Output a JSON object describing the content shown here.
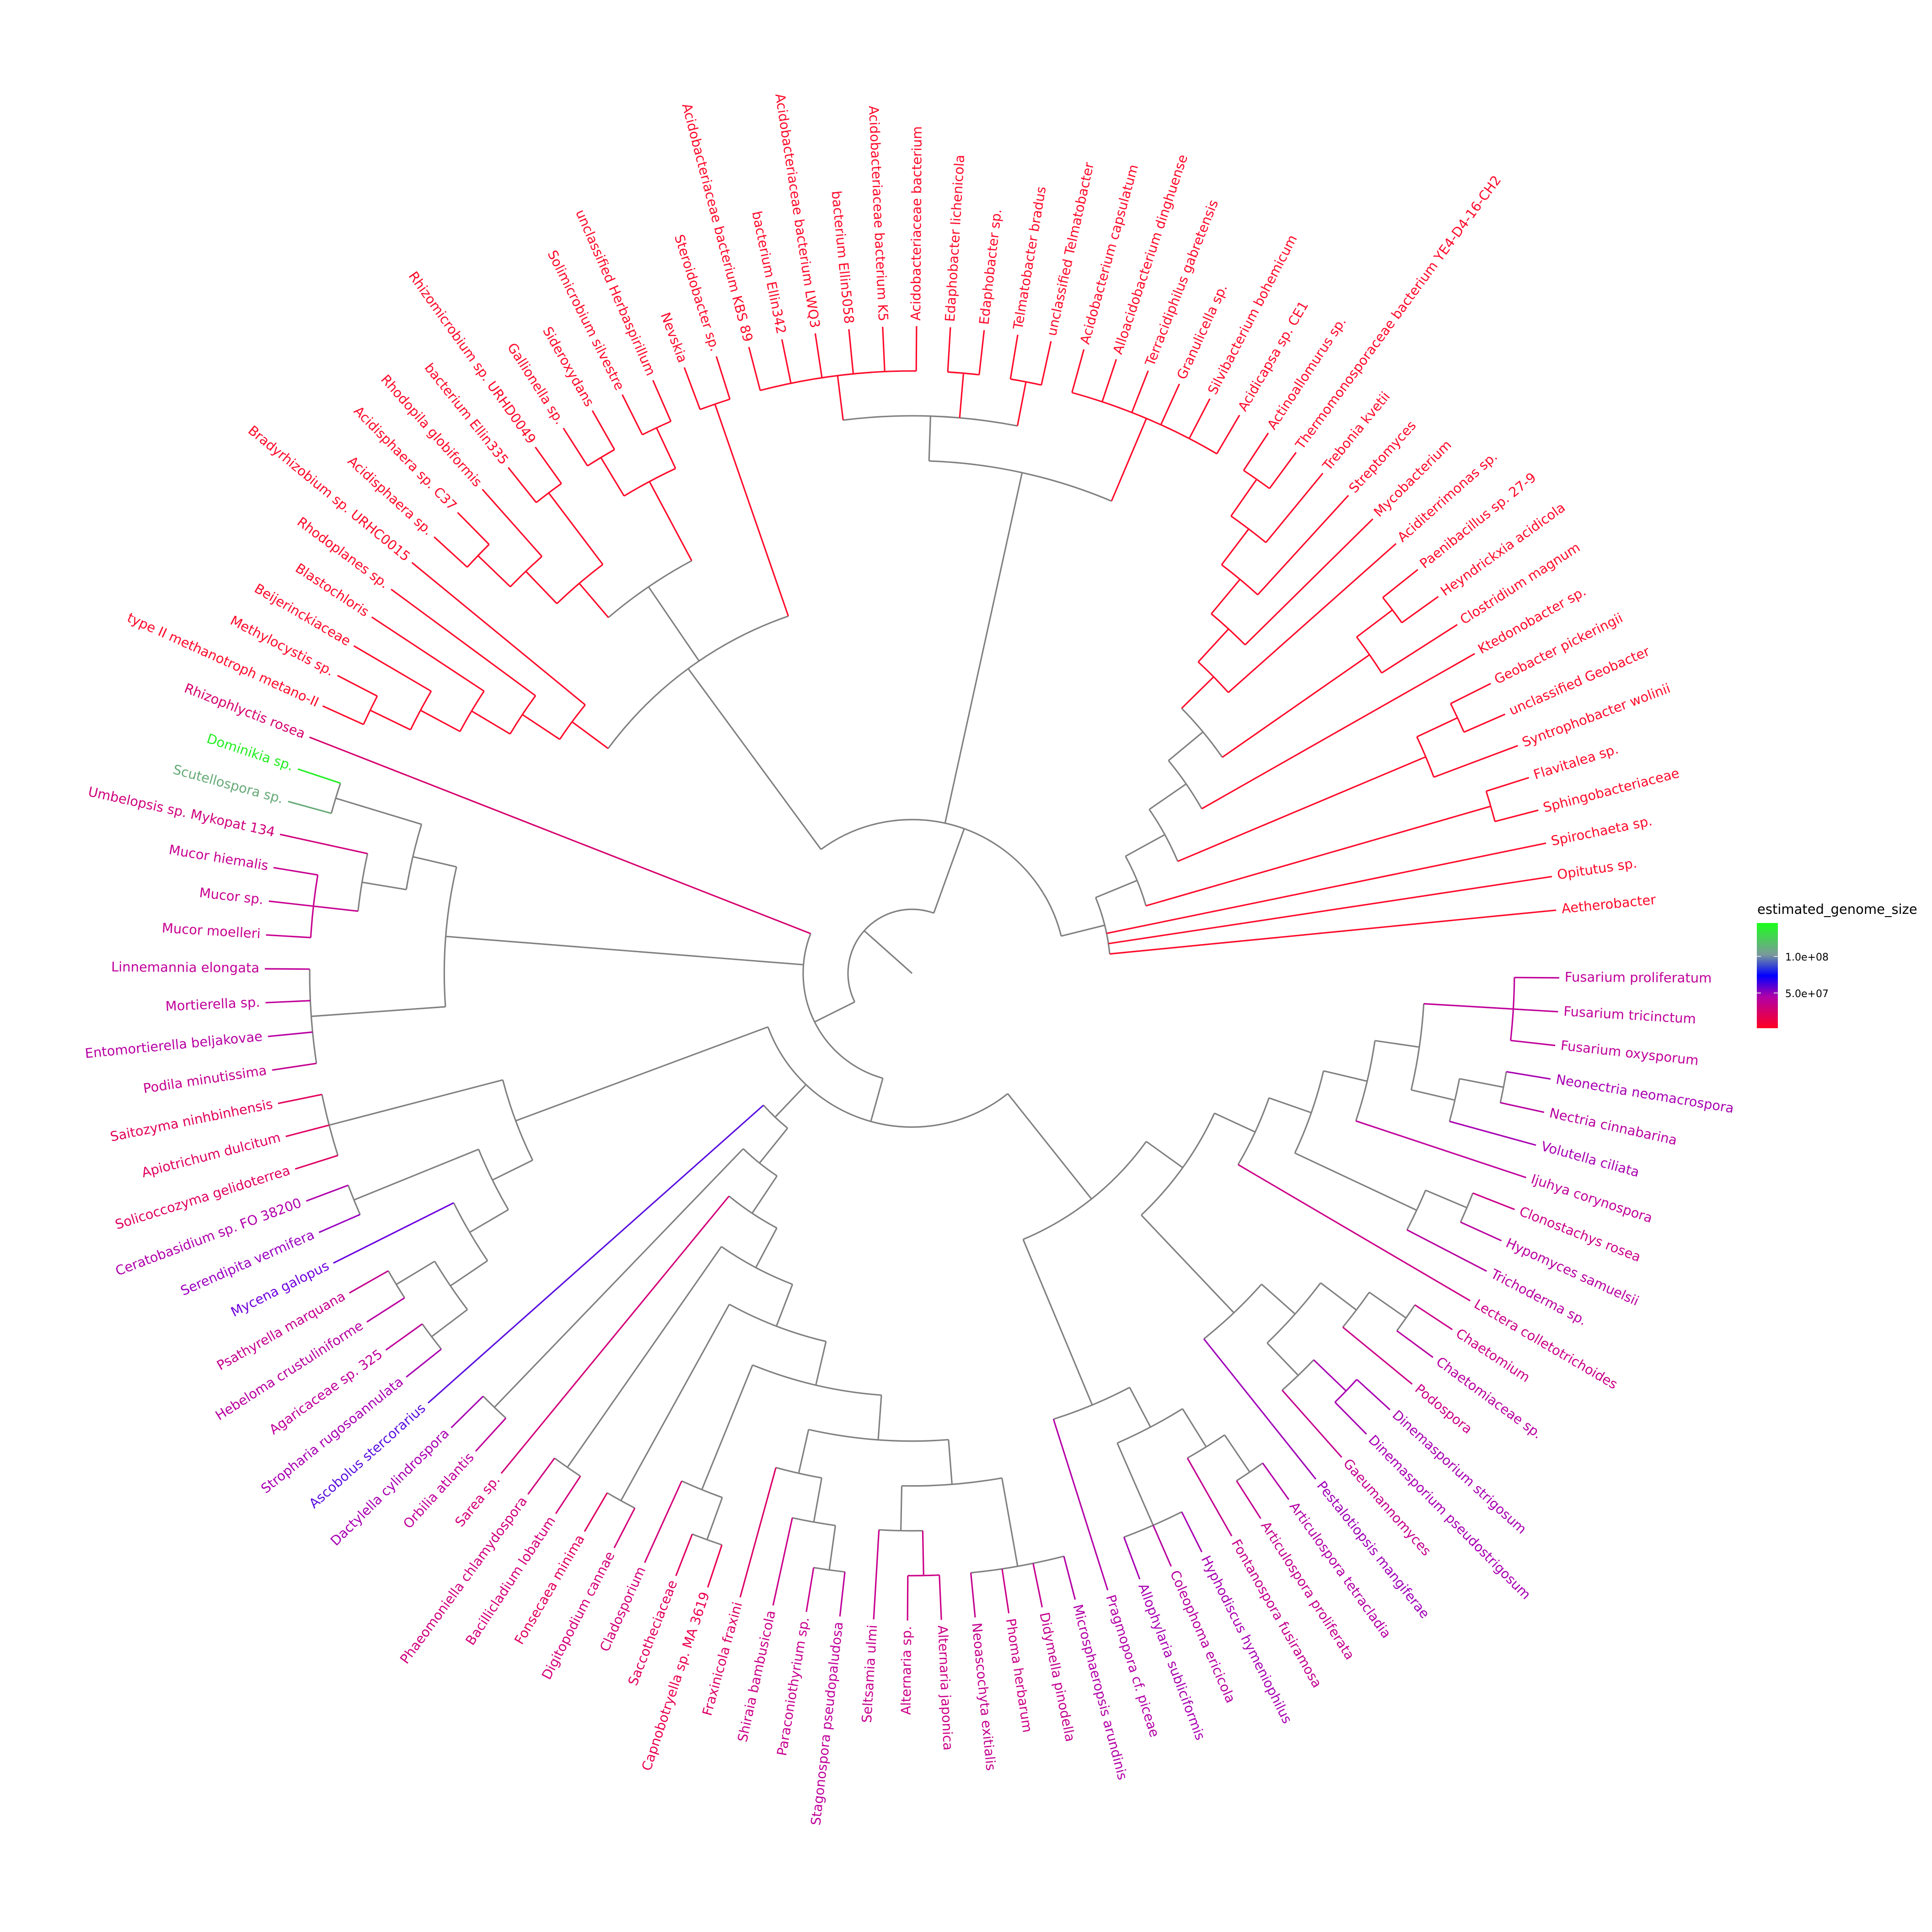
{
  "legend": {
    "title": "estimated_genome_size",
    "ticks": [
      {
        "label": "1.0e+08"
      },
      {
        "label": "5.0e+07"
      }
    ],
    "gradient_colors": [
      "#1aff1a",
      "#7a9a9a",
      "#0000ff",
      "#b000a8",
      "#ff0022"
    ]
  },
  "branch_gray": "#808080",
  "leaves": [
    {
      "name": "Aetherobacter",
      "color": "#ff0a2a"
    },
    {
      "name": "Opitutus sp.",
      "color": "#ff0a2a"
    },
    {
      "name": "Spirochaeta sp.",
      "color": "#ff0a2a"
    },
    {
      "name": "Sphingobacteriaceae",
      "color": "#ff0a2a"
    },
    {
      "name": "Flavitalea sp.",
      "color": "#ff0a2a"
    },
    {
      "name": "Syntrophobacter wolinii",
      "color": "#ff0a2a"
    },
    {
      "name": "unclassified Geobacter",
      "color": "#ff0a2a"
    },
    {
      "name": "Geobacter pickeringii",
      "color": "#ff0a2a"
    },
    {
      "name": "Ktedonobacter sp.",
      "color": "#ff0a2a"
    },
    {
      "name": "Clostridium magnum",
      "color": "#ff0a2a"
    },
    {
      "name": "Heyndrickxia acidicola",
      "color": "#ff0a2a"
    },
    {
      "name": "Paenibacillus sp. 27-9",
      "color": "#ff0a2a"
    },
    {
      "name": "Aciditerrimonas sp.",
      "color": "#ff0a2a"
    },
    {
      "name": "Mycobacterium",
      "color": "#ff0a2a"
    },
    {
      "name": "Streptomyces",
      "color": "#ff0a2a"
    },
    {
      "name": "Trebonia kvetii",
      "color": "#ff0a2a"
    },
    {
      "name": "Thermomonosporaceae bacterium YE4-D4-16-CH2",
      "color": "#ff0a2a"
    },
    {
      "name": "Actinoallomurus sp.",
      "color": "#ff0a2a"
    },
    {
      "name": "Acidicapsa sp. CE1",
      "color": "#ff0a2a"
    },
    {
      "name": "Silvibacterium bohemicum",
      "color": "#ff0a2a"
    },
    {
      "name": "Granulicella sp.",
      "color": "#ff0a2a"
    },
    {
      "name": "Terracidiphilus gabretensis",
      "color": "#ff0a2a"
    },
    {
      "name": "Alloacidobacterium dinghuense",
      "color": "#ff0a2a"
    },
    {
      "name": "Acidobacterium capsulatum",
      "color": "#ff0a2a"
    },
    {
      "name": "unclassified Telmatobacter",
      "color": "#ff0a2a"
    },
    {
      "name": "Telmatobacter bradus",
      "color": "#ff0a2a"
    },
    {
      "name": "Edaphobacter sp.",
      "color": "#ff0a2a"
    },
    {
      "name": "Edaphobacter lichenicola",
      "color": "#ff0a2a"
    },
    {
      "name": "Acidobacteriaceae bacterium",
      "color": "#ff0a2a"
    },
    {
      "name": "Acidobacteriaceae bacterium K5",
      "color": "#ff0a2a"
    },
    {
      "name": "bacterium Ellin5058",
      "color": "#ff0a2a"
    },
    {
      "name": "Acidobacteriaceae bacterium LWQ3",
      "color": "#ff0a2a"
    },
    {
      "name": "bacterium Ellin342",
      "color": "#ff0a2a"
    },
    {
      "name": "Acidobacteriaceae bacterium KBS 89",
      "color": "#ff0a2a"
    },
    {
      "name": "Steroidobacter sp.",
      "color": "#ff0a2a"
    },
    {
      "name": "Nevskia",
      "color": "#ff0a2a"
    },
    {
      "name": "unclassified Herbaspirillum",
      "color": "#ff0a2a"
    },
    {
      "name": "Solimicrobium silvestre",
      "color": "#ff0a2a"
    },
    {
      "name": "Sideroxydans",
      "color": "#ff0a2a"
    },
    {
      "name": "Gallionella sp.",
      "color": "#ff0a2a"
    },
    {
      "name": "Rhizomicrobium sp. URHD0049",
      "color": "#ff0a2a"
    },
    {
      "name": "bacterium Ellin335",
      "color": "#ff0a2a"
    },
    {
      "name": "Rhodopila globiformis",
      "color": "#ff0a2a"
    },
    {
      "name": "Acidisphaera sp. C37",
      "color": "#ff0a2a"
    },
    {
      "name": "Acidisphaera sp.",
      "color": "#ff0a2a"
    },
    {
      "name": "Bradyrhizobium sp. URHC0015",
      "color": "#ff0a2a"
    },
    {
      "name": "Rhodoplanes sp.",
      "color": "#ff0a2a"
    },
    {
      "name": "Blastochloris",
      "color": "#ff0a2a"
    },
    {
      "name": "Beijerinckiaceae",
      "color": "#ff0a2a"
    },
    {
      "name": "Methylocystis sp.",
      "color": "#ff0a2a"
    },
    {
      "name": "type II methanotroph metano-II",
      "color": "#ff0a2a"
    },
    {
      "name": "Rhizophlyctis rosea",
      "color": "#d6006e"
    },
    {
      "name": "Dominikia sp.",
      "color": "#22ee22"
    },
    {
      "name": "Scutellospora sp.",
      "color": "#66aa77"
    },
    {
      "name": "Umbelopsis sp. Mykopat 134",
      "color": "#d0007c"
    },
    {
      "name": "Mucor hiemalis",
      "color": "#c80090"
    },
    {
      "name": "Mucor sp.",
      "color": "#c80090"
    },
    {
      "name": "Mucor moelleri",
      "color": "#c80090"
    },
    {
      "name": "Linnemannia elongata",
      "color": "#c0009a"
    },
    {
      "name": "Mortierella sp.",
      "color": "#c0009a"
    },
    {
      "name": "Entomortierella beljakovae",
      "color": "#b800a4"
    },
    {
      "name": "Podila minutissima",
      "color": "#c4008e"
    },
    {
      "name": "Saitozyma ninhbinhensis",
      "color": "#e2005a"
    },
    {
      "name": "Apiotrichum dulcitum",
      "color": "#e00060"
    },
    {
      "name": "Solicoccozyma gelidoterrea",
      "color": "#e00060"
    },
    {
      "name": "Ceratobasidium sp. FO 38200",
      "color": "#b000aa"
    },
    {
      "name": "Serendipita vermifera",
      "color": "#9a00c0"
    },
    {
      "name": "Mycena galopus",
      "color": "#6e00dc"
    },
    {
      "name": "Psathyrella marquana",
      "color": "#c4008e"
    },
    {
      "name": "Hebeloma crustuliniforme",
      "color": "#b800a0"
    },
    {
      "name": "Agaricaceae sp. 325",
      "color": "#c0009a"
    },
    {
      "name": "Stropharia rugosoannulata",
      "color": "#a800b2"
    },
    {
      "name": "Ascobolus stercorarius",
      "color": "#5a10e0"
    },
    {
      "name": "Dactylella cylindrospora",
      "color": "#a800b2"
    },
    {
      "name": "Orbilia atlantis",
      "color": "#c0009a"
    },
    {
      "name": "Sarea sp.",
      "color": "#d4007a"
    },
    {
      "name": "Phaeomoniella chlamydospora",
      "color": "#d0007e"
    },
    {
      "name": "Bacillicladium lobatum",
      "color": "#d4007a"
    },
    {
      "name": "Fonsecaea minima",
      "color": "#e00060"
    },
    {
      "name": "Digitopodium cannae",
      "color": "#d4007a"
    },
    {
      "name": "Cladosporium",
      "color": "#d4007a"
    },
    {
      "name": "Saccotheciaceae",
      "color": "#e00060"
    },
    {
      "name": "Capnobotryella sp. MA 3619",
      "color": "#ea0050"
    },
    {
      "name": "Fraxinicola fraxini",
      "color": "#dc0068"
    },
    {
      "name": "Shiraia bambusicola",
      "color": "#cc0088"
    },
    {
      "name": "Paraconiothyrium sp.",
      "color": "#c80090"
    },
    {
      "name": "Stagonospora pseudopaludosa",
      "color": "#c0009a"
    },
    {
      "name": "Seltsamia ulmi",
      "color": "#c8008e"
    },
    {
      "name": "Alternaria sp.",
      "color": "#cc0088"
    },
    {
      "name": "Alternaria japonica",
      "color": "#cc0088"
    },
    {
      "name": "Neoascochyta exitialis",
      "color": "#c4008e"
    },
    {
      "name": "Phoma herbarum",
      "color": "#cc0088"
    },
    {
      "name": "Didymella pinodella",
      "color": "#c4008e"
    },
    {
      "name": "Microsphaeropsis arundinis",
      "color": "#b400a6"
    },
    {
      "name": "Pragmopora cf. piceae",
      "color": "#b400a6"
    },
    {
      "name": "Allophylaria subliciformis",
      "color": "#a800b2"
    },
    {
      "name": "Coleophoma ericicola",
      "color": "#b800a0"
    },
    {
      "name": "Hyphodiscus hymeniophilus",
      "color": "#a800b2"
    },
    {
      "name": "Fontanospora fusiramosa",
      "color": "#c4008e"
    },
    {
      "name": "Articulospora proliferata",
      "color": "#c4008e"
    },
    {
      "name": "Articulospora tetracladia",
      "color": "#b400a6"
    },
    {
      "name": "Pestalotiopsis mangiferae",
      "color": "#a000b8"
    },
    {
      "name": "Gaeumannomyces",
      "color": "#c4008e"
    },
    {
      "name": "Dinemasporium pseudostrigosum",
      "color": "#a800b2"
    },
    {
      "name": "Dinemasporium strigosum",
      "color": "#a800b2"
    },
    {
      "name": "Podospora",
      "color": "#cc0088"
    },
    {
      "name": "Chaetomiaceae sp.",
      "color": "#b800a0"
    },
    {
      "name": "Chaetomium",
      "color": "#cc0088"
    },
    {
      "name": "Lectera colletotrichoides",
      "color": "#cc0088"
    },
    {
      "name": "Trichoderma sp.",
      "color": "#b800a0"
    },
    {
      "name": "Hypomyces samuelsii",
      "color": "#b800a0"
    },
    {
      "name": "Clonostachys rosea",
      "color": "#cc0088"
    },
    {
      "name": "Ijuhya corynospora",
      "color": "#c0009a"
    },
    {
      "name": "Volutella ciliata",
      "color": "#a800b2"
    },
    {
      "name": "Nectria cinnabarina",
      "color": "#b800a0"
    },
    {
      "name": "Neonectria neomacrospora",
      "color": "#a800b2"
    },
    {
      "name": "Fusarium oxysporum",
      "color": "#c0009a"
    },
    {
      "name": "Fusarium tricinctum",
      "color": "#c0009a"
    },
    {
      "name": "Fusarium proliferatum",
      "color": "#c0009a"
    }
  ],
  "tree": [
    [
      [
        0,
        1,
        2,
        [
          [
            3,
            4
          ],
          [
            [
              5,
              [
                6,
                7
              ]
            ],
            [
              8,
              [
                [
                  9,
                  [
                    10,
                    11
                  ]
                ],
                [
                  12,
                  [
                    13,
                    [
                      14,
                      [
                        15,
                        [
                          16,
                          17
                        ]
                      ]
                    ]
                  ]
                ]
              ]
            ]
          ]
        ]
      ],
      [
        [
          18,
          19,
          20,
          21,
          22,
          23
        ],
        [
          [
            24,
            25
          ],
          [
            26,
            27
          ],
          [
            28,
            29,
            30,
            31,
            32,
            33
          ]
        ]
      ],
      [
        [
          34,
          35
        ],
        [
          [
            [
              36,
              37
            ],
            [
              38,
              39
            ]
          ],
          [
            [
              40,
              41
            ],
            [
              42,
              [
                43,
                44
              ]
            ]
          ]
        ],
        [
          45,
          [
            46,
            [
              47,
              [
                48,
                [
                  49,
                  50
                ]
              ]
            ]
          ]
        ]
      ]
    ],
    [
      51,
      [
        [
          [
            52,
            53
          ],
          [
            54,
            [
              55,
              56,
              57
            ]
          ]
        ],
        [
          58,
          59,
          60,
          61
        ]
      ],
      [
        [
          [
            62,
            63,
            64
          ],
          [
            [
              65,
              66
            ],
            [
              67,
              [
                [
                  68,
                  69
                ],
                [
                  70,
                  71
                ]
              ]
            ]
          ]
        ],
        [
          72,
          [
            [
              73,
              74
            ],
            [
              75,
              [
                [
                  76,
                  77
                ],
                [
                  [
                    78,
                    79
                  ],
                  [
                    [
                      80,
                      [
                        81,
                        82
                      ]
                    ],
                    [
                      [
                        83,
                        [
                          84,
                          [
                            85,
                            86
                          ]
                        ]
                      ],
                      [
                        [
                          87,
                          [
                            88,
                            89
                          ]
                        ],
                        [
                          90,
                          91,
                          92,
                          93
                        ]
                      ]
                    ]
                  ]
                ]
              ]
            ]
          ]
        ],
        [
          [
            94,
            [
              [
                95,
                96,
                97
              ],
              [
                98,
                [
                  99,
                  100
                ]
              ]
            ]
          ],
          [
            [
              101,
              [
                [
                  102,
                  [
                    103,
                    104
                  ]
                ],
                [
                  105,
                  [
                    106,
                    107
                  ]
                ]
              ]
            ],
            [
              108,
              [
                [
                  109,
                  [
                    110,
                    111
                  ]
                ],
                [
                  112,
                  [
                    [
                      113,
                      [
                        114,
                        115
                      ]
                    ],
                    [
                      116,
                      117,
                      118
                    ]
                  ]
                ]
              ]
            ]
          ]
        ]
      ]
    ]
  ]
}
